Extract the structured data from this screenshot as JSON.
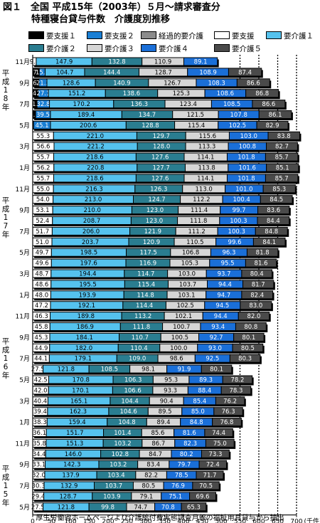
{
  "title": {
    "line1": "図１　全国 平成15年（2003年）５月〜請求審査分",
    "line2": "特種寝台貸与件数　介護度別推移"
  },
  "footer": "厚生労働省ホームページより介護給付費実態調査月報の福祉用具貸与から抽出",
  "colors": {
    "要支援１": "#000000",
    "要支援２": "#1a7fd4",
    "経過的要介護": "#8c8c8c",
    "要支援": "#ffffff",
    "要介護１": "#55c2ee",
    "要介護２": "#2a7d90",
    "要介護３": "#d6d6d6",
    "要介護４": "#1a6fd8",
    "要介護５": "#4a4a4a"
  },
  "chart_data": {
    "type": "bar",
    "orientation": "horizontal",
    "stacked": true,
    "unit": "(千件)",
    "xlim": [
      0,
      700
    ],
    "xticks": [
      0,
      50,
      100,
      150,
      200,
      250,
      300,
      350,
      400,
      450,
      500,
      550,
      600,
      650,
      700
    ],
    "dashed_gridlines": [
      550,
      600,
      650,
      700
    ],
    "legend": [
      "要支援１",
      "要支援２",
      "経過的要介護",
      "要支援",
      "要介護１",
      "要介護２",
      "要介護３",
      "要介護４",
      "要介護５"
    ],
    "year_labels": [
      "平成18年",
      "平成17年",
      "平成16年",
      "平成15年"
    ],
    "rows": [
      {
        "label": "11月",
        "values": [
          0,
          0,
          0,
          9.3,
          147.9,
          132.8,
          110.9,
          89.1,
          0
        ],
        "labels": [
          "",
          "",
          "",
          "9.3",
          "147.9",
          "132.8",
          "110.9",
          "89.1",
          ""
        ]
      },
      {
        "label": "",
        "values": [
          17.4,
          15.6,
          0,
          0,
          104.7,
          144.4,
          128.7,
          108.9,
          87.4
        ],
        "labels": [
          "17.4",
          "15.6",
          "",
          "",
          "104.7",
          "144.4",
          "128.7",
          "108.9",
          "87.4"
        ]
      },
      {
        "label": "9月",
        "values": [
          16.5,
          21.2,
          0,
          0,
          128.6,
          140.9,
          126.7,
          108.3,
          86.6
        ],
        "labels": [
          "16.5",
          "21.2",
          "",
          "",
          "128.6",
          "140.9",
          "126.7",
          "108.3",
          "86.6"
        ]
      },
      {
        "label": "",
        "values": [
          14.6,
          27.1,
          0,
          0,
          151.2,
          138.6,
          125.3,
          108.6,
          86.8
        ],
        "labels": [
          "14.6",
          "27.1",
          "",
          "",
          "151.2",
          "138.6",
          "125.3",
          "108.6",
          "86.8"
        ]
      },
      {
        "label": "7月",
        "values": [
          11.7,
          32.8,
          0,
          0,
          170.2,
          136.3,
          123.4,
          108.5,
          86.6
        ],
        "labels": [
          "11.7",
          "32.8",
          "",
          "",
          "170.2",
          "136.3",
          "123.4",
          "108.5",
          "86.6"
        ]
      },
      {
        "label": "",
        "values": [
          7.6,
          39.5,
          0,
          0,
          189.4,
          134.7,
          121.5,
          107.8,
          86.1
        ],
        "labels": [
          "7.6",
          "39.5",
          "",
          "",
          "189.4",
          "134.7",
          "121.5",
          "107.8",
          "86.1"
        ]
      },
      {
        "label": "5月",
        "values": [
          2.1,
          45.1,
          0,
          0,
          200.6,
          128.8,
          115.4,
          102.5,
          82.9
        ],
        "labels": [
          "2.1",
          "45.1",
          "",
          "",
          "200.6",
          "128.8",
          "115.4",
          "102.5",
          "82.9"
        ]
      },
      {
        "label": "",
        "values": [
          0,
          0,
          0,
          55.3,
          221.0,
          129.7,
          115.6,
          103.0,
          83.8
        ],
        "labels": [
          "",
          "",
          "",
          "55.3",
          "221.0",
          "129.7",
          "115.6",
          "103.0",
          "83.8"
        ]
      },
      {
        "label": "3月",
        "values": [
          0,
          0,
          0,
          56.6,
          221.2,
          128.0,
          113.3,
          100.8,
          82.7
        ],
        "labels": [
          "",
          "",
          "",
          "56.6",
          "221.2",
          "128.0",
          "113.3",
          "100.8",
          "82.7"
        ]
      },
      {
        "label": "",
        "values": [
          0,
          0,
          0,
          55.7,
          218.6,
          127.6,
          114.1,
          101.8,
          85.7
        ],
        "labels": [
          "",
          "",
          "",
          "55.7",
          "218.6",
          "127.6",
          "114.1",
          "101.8",
          "85.7"
        ]
      },
      {
        "label": "1月",
        "values": [
          0,
          0,
          0,
          56.2,
          220.8,
          127.7,
          113.8,
          101.6,
          85.1
        ],
        "labels": [
          "",
          "",
          "",
          "56.2",
          "220.8",
          "127.7",
          "113.8",
          "101.6",
          "85.1"
        ]
      },
      {
        "label": "",
        "values": [
          0,
          0,
          0,
          55.7,
          218.6,
          127.6,
          114.1,
          101.8,
          85.7
        ],
        "labels": [
          "",
          "",
          "",
          "55.7",
          "218.6",
          "127.6",
          "114.1",
          "101.8",
          "85.7"
        ]
      },
      {
        "label": "11月",
        "values": [
          0,
          0,
          0,
          55.0,
          216.3,
          126.3,
          113.0,
          101.0,
          85.3
        ],
        "labels": [
          "",
          "",
          "",
          "55.0",
          "216.3",
          "126.3",
          "113.0",
          "101.0",
          "85.3"
        ]
      },
      {
        "label": "",
        "values": [
          0,
          0,
          0,
          54.0,
          213.0,
          124.7,
          112.2,
          100.4,
          84.5
        ],
        "labels": [
          "",
          "",
          "",
          "54.0",
          "213.0",
          "124.7",
          "112.2",
          "100.4",
          "84.5"
        ]
      },
      {
        "label": "9月",
        "values": [
          0,
          0,
          0,
          53.1,
          210.0,
          123.0,
          111.4,
          99.7,
          83.6
        ],
        "labels": [
          "",
          "",
          "",
          "53.1",
          "210.0",
          "123.0",
          "111.4",
          "99.7",
          "83.6"
        ]
      },
      {
        "label": "",
        "values": [
          0,
          0,
          0,
          52.4,
          208.7,
          123.0,
          111.8,
          100.3,
          84.4
        ],
        "labels": [
          "",
          "",
          "",
          "52.4",
          "208.7",
          "123.0",
          "111.8",
          "100.3",
          "84.4"
        ]
      },
      {
        "label": "7月",
        "values": [
          0,
          0,
          0,
          51.7,
          206.0,
          121.9,
          111.2,
          100.3,
          84.8
        ],
        "labels": [
          "",
          "",
          "",
          "51.7",
          "206.0",
          "121.9",
          "111.2",
          "100.3",
          "84.8"
        ]
      },
      {
        "label": "",
        "values": [
          0,
          0,
          0,
          51.0,
          203.7,
          120.9,
          110.5,
          99.6,
          84.1
        ],
        "labels": [
          "",
          "",
          "",
          "51.0",
          "203.7",
          "120.9",
          "110.5",
          "99.6",
          "84.1"
        ]
      },
      {
        "label": "5月",
        "values": [
          0,
          0,
          0,
          49.7,
          198.5,
          117.5,
          106.8,
          96.3,
          81.8
        ],
        "labels": [
          "",
          "",
          "",
          "49.7",
          "198.5",
          "117.5",
          "106.8",
          "96.3",
          "81.8"
        ]
      },
      {
        "label": "",
        "values": [
          0,
          0,
          0,
          49.6,
          197.6,
          116.9,
          105.3,
          95.5,
          81.6
        ],
        "labels": [
          "",
          "",
          "",
          "49.6",
          "197.6",
          "116.9",
          "105.3",
          "95.5",
          "81.6"
        ]
      },
      {
        "label": "3月",
        "values": [
          0,
          0,
          0,
          48.7,
          194.4,
          114.7,
          103.0,
          93.7,
          80.4
        ],
        "labels": [
          "",
          "",
          "",
          "48.7",
          "194.4",
          "114.7",
          "103.0",
          "93.7",
          "80.4"
        ]
      },
      {
        "label": "",
        "values": [
          0,
          0,
          0,
          48.6,
          195.5,
          115.4,
          103.7,
          94.4,
          81.7
        ],
        "labels": [
          "",
          "",
          "",
          "48.6",
          "195.5",
          "115.4",
          "103.7",
          "94.4",
          "81.7"
        ]
      },
      {
        "label": "1月",
        "values": [
          0,
          0,
          0,
          48.0,
          193.9,
          114.8,
          103.1,
          94.7,
          82.4
        ],
        "labels": [
          "",
          "",
          "",
          "48.0",
          "193.9",
          "114.8",
          "103.1",
          "94.7",
          "82.4"
        ]
      },
      {
        "label": "",
        "values": [
          0,
          0,
          0,
          47.2,
          192.1,
          114.4,
          102.5,
          94.5,
          83.0
        ],
        "labels": [
          "",
          "",
          "",
          "47.2",
          "192.1",
          "114.4",
          "102.5",
          "94.5",
          "83.0"
        ]
      },
      {
        "label": "11月",
        "values": [
          0,
          0,
          0,
          46.3,
          189.8,
          113.2,
          102.1,
          94.4,
          82.0
        ],
        "labels": [
          "",
          "",
          "",
          "46.3",
          "189.8",
          "113.2",
          "102.1",
          "94.4",
          "82.0"
        ]
      },
      {
        "label": "",
        "values": [
          0,
          0,
          0,
          45.8,
          186.9,
          111.8,
          100.7,
          93.4,
          80.8
        ],
        "labels": [
          "",
          "",
          "",
          "45.8",
          "186.9",
          "111.8",
          "100.7",
          "93.4",
          "80.8"
        ]
      },
      {
        "label": "9月",
        "values": [
          0,
          0,
          0,
          45.3,
          184.1,
          110.7,
          100.5,
          92.7,
          80.1
        ],
        "labels": [
          "",
          "",
          "",
          "45.3",
          "184.1",
          "110.7",
          "100.5",
          "92.7",
          "80.1"
        ]
      },
      {
        "label": "",
        "values": [
          0,
          0,
          0,
          44.9,
          182.0,
          110.4,
          100.0,
          93.0,
          80.5
        ],
        "labels": [
          "",
          "",
          "",
          "44.9",
          "182.0",
          "110.4",
          "100.0",
          "93.0",
          "80.5"
        ]
      },
      {
        "label": "7月",
        "values": [
          0,
          0,
          0,
          44.1,
          179.1,
          109.0,
          98.6,
          92.5,
          80.3
        ],
        "labels": [
          "",
          "",
          "",
          "44.1",
          "179.1",
          "109.0",
          "98.6",
          "92.5",
          "80.3"
        ]
      },
      {
        "label": "",
        "values": [
          0,
          0,
          0,
          27.5,
          121.8,
          108.5,
          98.1,
          91.9,
          80.1
        ],
        "labels": [
          "",
          "",
          "",
          "27.5",
          "121.8",
          "108.5",
          "98.1",
          "91.9",
          "80.1"
        ]
      },
      {
        "label": "5月",
        "values": [
          0,
          0,
          0,
          42.5,
          170.8,
          106.3,
          95.3,
          89.3,
          78.2
        ],
        "labels": [
          "",
          "",
          "",
          "42.5",
          "170.8",
          "106.3",
          "95.3",
          "89.3",
          "78.2"
        ]
      },
      {
        "label": "",
        "values": [
          0,
          0,
          0,
          42.0,
          170.1,
          106.6,
          93.3,
          88.4,
          78.3
        ],
        "labels": [
          "",
          "",
          "",
          "42.0",
          "170.1",
          "106.6",
          "93.3",
          "88.4",
          "78.3"
        ]
      },
      {
        "label": "3月",
        "values": [
          0,
          0,
          0,
          40.4,
          165.1,
          104.4,
          90.4,
          85.4,
          76.2
        ],
        "labels": [
          "",
          "",
          "",
          "40.4",
          "165.1",
          "104.4",
          "90.4",
          "85.4",
          "76.2"
        ]
      },
      {
        "label": "",
        "values": [
          0,
          0,
          0,
          39.4,
          162.3,
          104.6,
          89.5,
          85.0,
          76.3
        ],
        "labels": [
          "",
          "",
          "",
          "39.4",
          "162.3",
          "104.6",
          "89.5",
          "85.0",
          "76.3"
        ]
      },
      {
        "label": "1月",
        "values": [
          0,
          0,
          0,
          38.3,
          159.4,
          104.8,
          89.4,
          84.8,
          76.8
        ],
        "labels": [
          "",
          "",
          "",
          "38.3",
          "159.4",
          "104.8",
          "89.4",
          "84.8",
          "76.8"
        ]
      },
      {
        "label": "",
        "values": [
          0,
          0,
          0,
          36.1,
          151.7,
          101.4,
          85.6,
          81.6,
          74.4
        ],
        "labels": [
          "",
          "",
          "",
          "36.1",
          "151.7",
          "101.4",
          "85.6",
          "81.6",
          "74.4"
        ]
      },
      {
        "label": "11月",
        "values": [
          0,
          0,
          0,
          35.8,
          151.3,
          103.2,
          86.7,
          82.3,
          75.0
        ],
        "labels": [
          "",
          "",
          "",
          "35.8",
          "151.3",
          "103.2",
          "86.7",
          "82.3",
          "75.0"
        ]
      },
      {
        "label": "",
        "values": [
          0,
          0,
          0,
          34.4,
          146.0,
          102.8,
          84.7,
          80.2,
          73.3
        ],
        "labels": [
          "",
          "",
          "",
          "34.4",
          "146.0",
          "102.8",
          "84.7",
          "80.2",
          "73.3"
        ]
      },
      {
        "label": "9月",
        "values": [
          0,
          0,
          0,
          33.1,
          142.3,
          103.2,
          83.4,
          79.7,
          72.4
        ],
        "labels": [
          "",
          "",
          "",
          "33.1",
          "142.3",
          "103.2",
          "83.4",
          "79.7",
          "72.4"
        ]
      },
      {
        "label": "",
        "values": [
          0,
          0,
          0,
          32.0,
          137.9,
          103.4,
          82.2,
          78.5,
          71.7
        ],
        "labels": [
          "",
          "",
          "",
          "32.0",
          "137.9",
          "103.4",
          "82.2",
          "78.5",
          "71.7"
        ]
      },
      {
        "label": "7月",
        "values": [
          0,
          0,
          0,
          30.3,
          132.9,
          103.7,
          80.5,
          76.9,
          70.5
        ],
        "labels": [
          "",
          "",
          "",
          "30.3",
          "132.9",
          "103.7",
          "80.5",
          "76.9",
          "70.5"
        ]
      },
      {
        "label": "",
        "values": [
          0,
          0,
          0,
          29.4,
          128.7,
          103.9,
          79.1,
          75.1,
          69.6
        ],
        "labels": [
          "",
          "",
          "",
          "29.4",
          "128.7",
          "103.9",
          "79.1",
          "75.1",
          "69.6"
        ]
      },
      {
        "label": "5月",
        "values": [
          0,
          0,
          0,
          27.5,
          121.8,
          99.8,
          74.7,
          70.8,
          65.3
        ],
        "labels": [
          "",
          "",
          "",
          "27.5",
          "121.8",
          "99.8",
          "74.7",
          "70.8",
          "65.3"
        ]
      }
    ]
  }
}
